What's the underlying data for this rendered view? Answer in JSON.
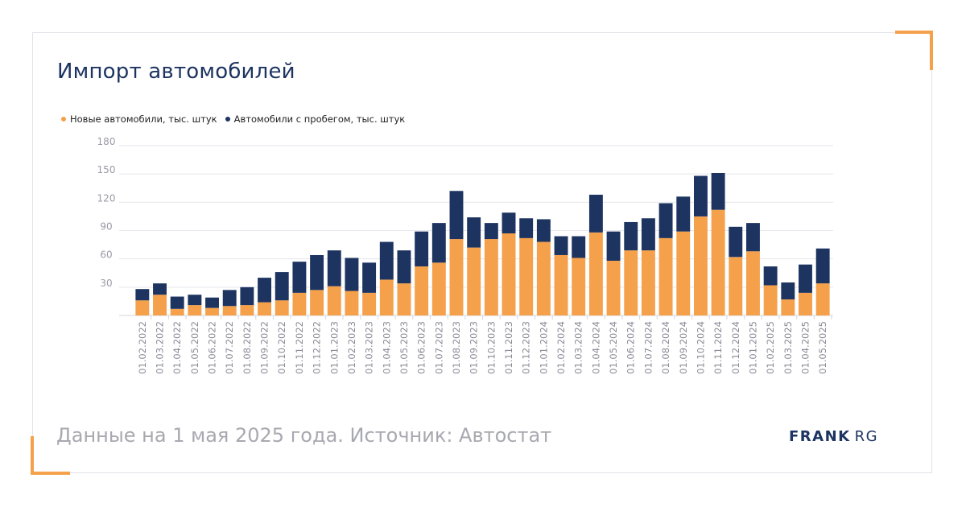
{
  "header": {
    "title": "Импорт автомобилей"
  },
  "footer": {
    "note": "Данные на 1 мая 2025 года. Источник: Автостат"
  },
  "logo": {
    "brand": "FRANK",
    "suffix": "RG"
  },
  "colors": {
    "new": "#f5a04b",
    "used": "#1d3461",
    "accent": "#f5a04b"
  },
  "chart_data": {
    "type": "bar",
    "stacked": true,
    "title": "Импорт автомобилей",
    "xlabel": "",
    "ylabel": "",
    "ylim": [
      0,
      180
    ],
    "yticks": [
      30,
      60,
      90,
      120,
      150,
      180
    ],
    "grid": true,
    "legend_position": "top-left",
    "categories": [
      "01.02.2022",
      "01.03.2022",
      "01.04.2022",
      "01.05.2022",
      "01.06.2022",
      "01.07.2022",
      "01.08.2022",
      "01.09.2022",
      "01.10.2022",
      "01.11.2022",
      "01.12.2022",
      "01.01.2023",
      "01.02.2023",
      "01.03.2023",
      "01.04.2023",
      "01.05.2023",
      "01.06.2023",
      "01.07.2023",
      "01.08.2023",
      "01.09.2023",
      "01.10.2023",
      "01.11.2023",
      "01.12.2023",
      "01.01.2024",
      "01.02.2024",
      "01.03.2024",
      "01.04.2024",
      "01.05.2024",
      "01.06.2024",
      "01.07.2024",
      "01.08.2024",
      "01.09.2024",
      "01.10.2024",
      "01.11.2024",
      "01.12.2024",
      "01.01.2025",
      "01.02.2025",
      "01.03.2025",
      "01.04.2025",
      "01.05.2025"
    ],
    "series": [
      {
        "name": "Новые автомобили, тыс. штук",
        "color": "#f5a04b",
        "values": [
          16,
          22,
          7,
          11,
          8,
          10,
          11,
          14,
          16,
          24,
          27,
          31,
          26,
          24,
          38,
          34,
          52,
          56,
          81,
          72,
          81,
          87,
          82,
          78,
          64,
          61,
          88,
          58,
          69,
          69,
          82,
          89,
          105,
          112,
          62,
          68,
          32,
          17,
          24,
          34
        ]
      },
      {
        "name": "Автомобили с пробегом, тыс. штук",
        "color": "#1d3461",
        "values": [
          12,
          12,
          13,
          11,
          11,
          17,
          19,
          26,
          30,
          33,
          37,
          38,
          35,
          32,
          40,
          35,
          37,
          42,
          51,
          32,
          17,
          22,
          21,
          24,
          20,
          23,
          40,
          31,
          30,
          34,
          37,
          37,
          43,
          39,
          32,
          30,
          20,
          18,
          30,
          37
        ]
      }
    ]
  }
}
